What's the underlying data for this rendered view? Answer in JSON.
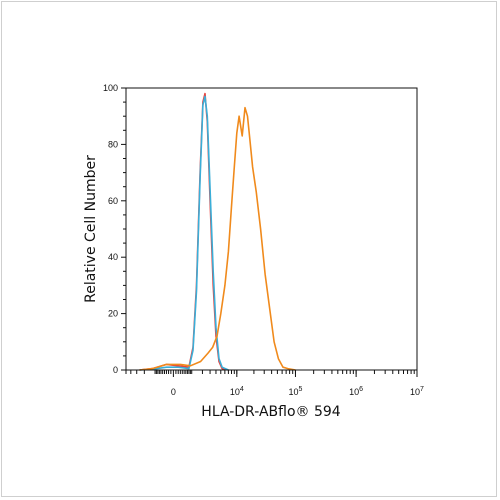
{
  "chart_data": {
    "type": "line",
    "xlabel": "HLA-DR-ABflo® 594",
    "ylabel": "Relative Cell Number",
    "x_scale": "biexponential",
    "ylim": [
      0,
      100
    ],
    "y_ticks": [
      "0",
      "20",
      "40",
      "60",
      "80",
      "100"
    ],
    "x_ticks": [
      {
        "value": 0,
        "label": "0",
        "exp": ""
      },
      {
        "value": 10000,
        "label": "10",
        "exp": "4"
      },
      {
        "value": 100000,
        "label": "10",
        "exp": "5"
      },
      {
        "value": 1000000,
        "label": "10",
        "exp": "6"
      },
      {
        "value": 10000000,
        "label": "10",
        "exp": "7"
      }
    ],
    "series": [
      {
        "color": "#e8433f",
        "points": [
          [
            -2600,
            0
          ],
          [
            -1200,
            0.5
          ],
          [
            -300,
            2
          ],
          [
            200,
            1.5
          ],
          [
            800,
            1
          ],
          [
            1100,
            8
          ],
          [
            1400,
            30
          ],
          [
            1750,
            70
          ],
          [
            2050,
            95
          ],
          [
            2300,
            98
          ],
          [
            2600,
            88
          ],
          [
            3000,
            60
          ],
          [
            3500,
            30
          ],
          [
            4000,
            12
          ],
          [
            4600,
            3
          ],
          [
            5300,
            0.5
          ],
          [
            7000,
            0
          ]
        ]
      },
      {
        "color": "#3aaed8",
        "points": [
          [
            -2600,
            0
          ],
          [
            -1200,
            0.3
          ],
          [
            -300,
            1
          ],
          [
            200,
            1
          ],
          [
            800,
            0.5
          ],
          [
            1100,
            7
          ],
          [
            1400,
            28
          ],
          [
            1750,
            68
          ],
          [
            2050,
            94
          ],
          [
            2300,
            97
          ],
          [
            2600,
            90
          ],
          [
            3000,
            64
          ],
          [
            3500,
            35
          ],
          [
            4000,
            15
          ],
          [
            4600,
            4
          ],
          [
            5300,
            1
          ],
          [
            7000,
            0
          ]
        ]
      },
      {
        "color": "#f08a1c",
        "points": [
          [
            -2600,
            0
          ],
          [
            -1200,
            0.5
          ],
          [
            -300,
            2
          ],
          [
            300,
            2
          ],
          [
            900,
            1.5
          ],
          [
            1800,
            3
          ],
          [
            2700,
            6
          ],
          [
            3400,
            8
          ],
          [
            4200,
            12
          ],
          [
            5000,
            20
          ],
          [
            6000,
            30
          ],
          [
            7000,
            42
          ],
          [
            8000,
            58
          ],
          [
            9000,
            72
          ],
          [
            10000,
            84
          ],
          [
            11000,
            90
          ],
          [
            12500,
            83
          ],
          [
            14000,
            93
          ],
          [
            15500,
            90
          ],
          [
            17000,
            82
          ],
          [
            19000,
            72
          ],
          [
            22000,
            63
          ],
          [
            26000,
            50
          ],
          [
            31000,
            34
          ],
          [
            37000,
            22
          ],
          [
            44000,
            10
          ],
          [
            52000,
            4
          ],
          [
            62000,
            1
          ],
          [
            75000,
            0.5
          ],
          [
            100000,
            0
          ]
        ]
      }
    ]
  }
}
